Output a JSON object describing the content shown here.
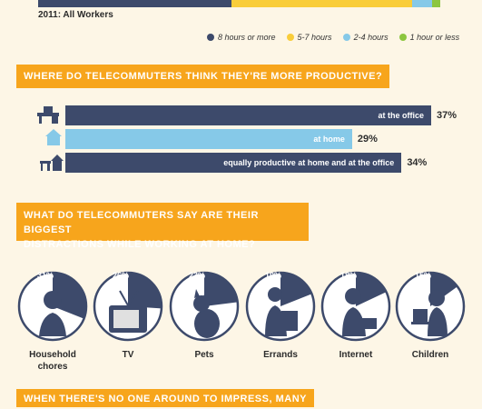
{
  "top_chart": {
    "caption": "2011: All Workers",
    "colors": [
      "#3d4a6b",
      "#f9cd3a",
      "#86c9e8",
      "#8cc63f"
    ],
    "legend": [
      {
        "label": "8 hours or more",
        "color": "#3d4a6b"
      },
      {
        "label": "5-7 hours",
        "color": "#f9cd3a"
      },
      {
        "label": "2-4 hours",
        "color": "#86c9e8"
      },
      {
        "label": "1 hour or less",
        "color": "#8cc63f"
      }
    ]
  },
  "section1": {
    "title": "WHERE DO TELECOMMUTERS THINK THEY'RE MORE PRODUCTIVE?"
  },
  "section2": {
    "title_line1": "WHAT DO TELECOMMUTERS SAY ARE THEIR BIGGEST",
    "title_line2": "DISTRACTIONS WHILE WORKING AT HOME?"
  },
  "section3": {
    "title": "WHEN THERE'S NO ONE AROUND TO IMPRESS, MANY"
  },
  "chart_data": [
    {
      "type": "bar",
      "title": "",
      "categories": [
        "8 hours or more",
        "5-7 hours",
        "2-4 hours",
        "1 hour or less"
      ],
      "series": [
        {
          "name": "2011: All Workers",
          "values": [
            48,
            45,
            5,
            2
          ]
        }
      ]
    },
    {
      "type": "bar",
      "title": "WHERE DO TELECOMMUTERS THINK THEY'RE MORE PRODUCTIVE?",
      "categories": [
        "at the office",
        "at home",
        "equally productive at home and at the office"
      ],
      "values": [
        37,
        29,
        34
      ],
      "value_labels": [
        "37%",
        "29%",
        "34%"
      ],
      "colors": [
        "#3d4a6b",
        "#86c9e8",
        "#3d4a6b"
      ],
      "icons": [
        "desk-icon",
        "house-icon",
        "desk-and-house-icon"
      ]
    },
    {
      "type": "pie",
      "title": "WHAT DO TELECOMMUTERS SAY ARE THEIR BIGGEST DISTRACTIONS WHILE WORKING AT HOME?",
      "categories": [
        "Household chores",
        "TV",
        "Pets",
        "Errands",
        "Internet",
        "Children"
      ],
      "values": [
        31,
        26,
        23,
        19,
        18,
        15
      ],
      "value_labels": [
        "31%",
        "26%",
        "23%",
        "19%",
        "18%",
        "15%"
      ],
      "icons": [
        "household-chores-icon",
        "tv-icon",
        "pets-icon",
        "errands-icon",
        "internet-icon",
        "children-icon"
      ]
    }
  ]
}
